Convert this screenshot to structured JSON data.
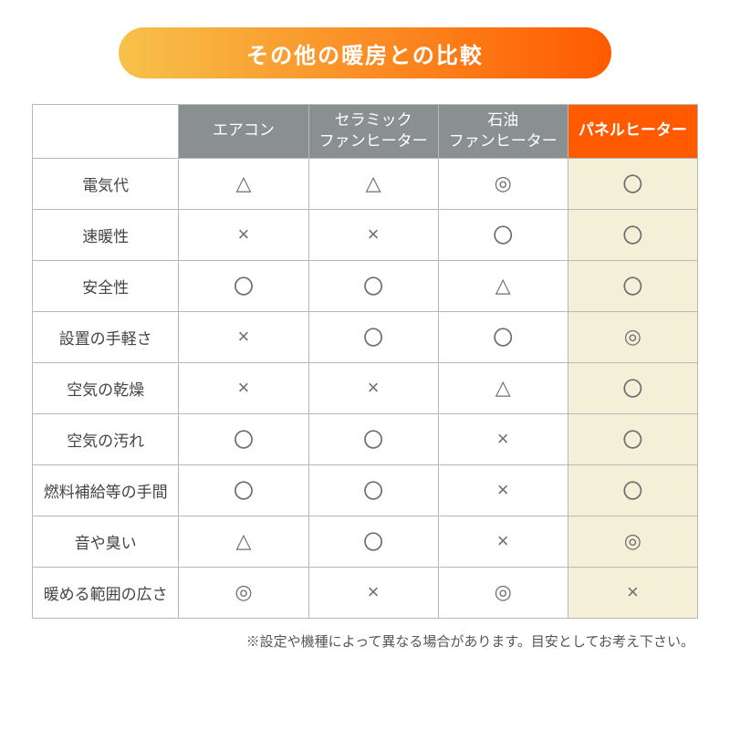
{
  "title": "その他の暖房との比較",
  "title_gradient": {
    "from": "#f6c24a",
    "to": "#ff5a00"
  },
  "header_bg_normal": "#8a8f92",
  "header_bg_highlight": "#ff5a00",
  "highlight_col_bg": "#f4f0d8",
  "symbol_color": "#6b6f72",
  "symbol_color_highlight": "#6b6f72",
  "headers": [
    "エアコン",
    "セラミック\nファンヒーター",
    "石油\nファンヒーター",
    "パネルヒーター"
  ],
  "highlight_column_index": 3,
  "row_labels": [
    "電気代",
    "速暖性",
    "安全性",
    "設置の手軽さ",
    "空気の乾燥",
    "空気の汚れ",
    "燃料補給等の手間",
    "音や臭い",
    "暖める範囲の広さ"
  ],
  "cells": [
    [
      "triangle",
      "triangle",
      "double-circle",
      "circle"
    ],
    [
      "cross",
      "cross",
      "circle",
      "circle"
    ],
    [
      "circle",
      "circle",
      "triangle",
      "circle"
    ],
    [
      "cross",
      "circle",
      "circle",
      "double-circle"
    ],
    [
      "cross",
      "cross",
      "triangle",
      "circle"
    ],
    [
      "circle",
      "circle",
      "cross",
      "circle"
    ],
    [
      "circle",
      "circle",
      "cross",
      "circle"
    ],
    [
      "triangle",
      "circle",
      "cross",
      "double-circle"
    ],
    [
      "double-circle",
      "cross",
      "double-circle",
      "cross"
    ]
  ],
  "symbols": {
    "circle": "〇",
    "double-circle": "◎",
    "triangle": "△",
    "cross": "×"
  },
  "footnote": "※設定や機種によって異なる場合があります。目安としてお考え下さい。"
}
